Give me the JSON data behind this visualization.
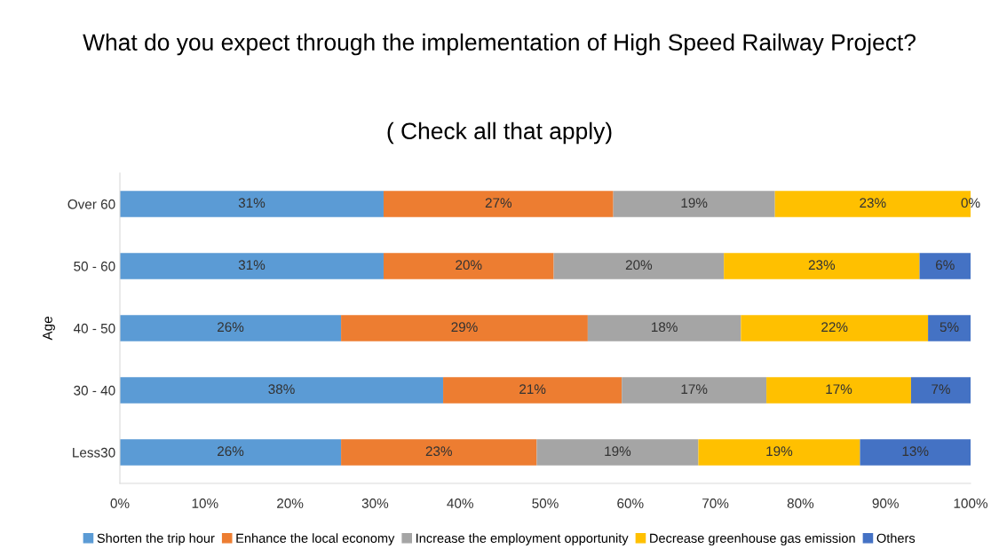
{
  "chart_data": {
    "type": "bar",
    "orientation": "horizontal",
    "stacked": true,
    "title": "What do you expect through the implementation of High Speed Railway Project?",
    "subtitle": "( Check all that apply)",
    "ylabel": "Age",
    "categories": [
      "Over 60",
      "50 - 60",
      "40 - 50",
      "30 - 40",
      "Less30"
    ],
    "series": [
      {
        "name": "Shorten the trip hour",
        "color": "#5b9bd5",
        "values": [
          31,
          31,
          26,
          38,
          26
        ],
        "value_labels": [
          "31%",
          "31%",
          "26%",
          "38%",
          "26%"
        ]
      },
      {
        "name": "Enhance the local economy",
        "color": "#ed7d31",
        "values": [
          27,
          20,
          29,
          21,
          23
        ],
        "value_labels": [
          "27%",
          "20%",
          "29%",
          "21%",
          "23%"
        ]
      },
      {
        "name": "Increase the employment opportunity",
        "color": "#a5a5a5",
        "values": [
          19,
          20,
          18,
          17,
          19
        ],
        "value_labels": [
          "19%",
          "20%",
          "18%",
          "17%",
          "19%"
        ]
      },
      {
        "name": "Decrease greenhouse gas emission",
        "color": "#ffc000",
        "values": [
          23,
          23,
          22,
          17,
          19
        ],
        "value_labels": [
          "23%",
          "23%",
          "22%",
          "17%",
          "19%"
        ]
      },
      {
        "name": "Others",
        "color": "#4472c4",
        "values": [
          0,
          6,
          5,
          7,
          13
        ],
        "value_labels": [
          "0%",
          "6%",
          "5%",
          "7%",
          "13%"
        ]
      }
    ],
    "xlim": [
      0,
      100
    ],
    "xticks": [
      {
        "value": 0,
        "label": "0%"
      },
      {
        "value": 10,
        "label": "10%"
      },
      {
        "value": 20,
        "label": "20%"
      },
      {
        "value": 30,
        "label": "30%"
      },
      {
        "value": 40,
        "label": "40%"
      },
      {
        "value": 50,
        "label": "50%"
      },
      {
        "value": 60,
        "label": "60%"
      },
      {
        "value": 70,
        "label": "70%"
      },
      {
        "value": 80,
        "label": "80%"
      },
      {
        "value": 90,
        "label": "90%"
      },
      {
        "value": 100,
        "label": "100%"
      }
    ],
    "legend": "bottom",
    "grid": false
  }
}
